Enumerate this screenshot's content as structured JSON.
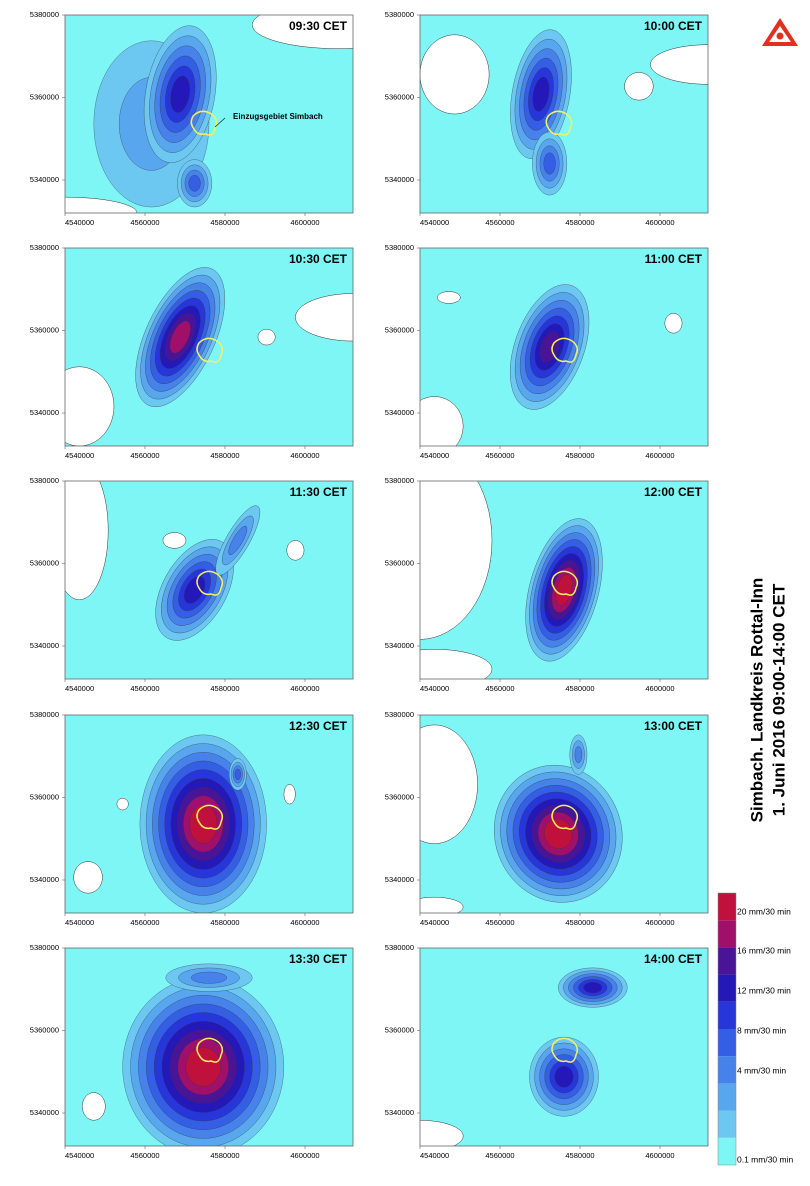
{
  "title_lines": [
    "Simbach. Landkreis Rottal-Inn",
    "1. Juni 2016 09:00-14:00 CET"
  ],
  "panels": [
    {
      "time": "09:30 CET"
    },
    {
      "time": "10:00 CET"
    },
    {
      "time": "10:30 CET"
    },
    {
      "time": "11:00 CET"
    },
    {
      "time": "11:30 CET"
    },
    {
      "time": "12:00 CET"
    },
    {
      "time": "12:30 CET"
    },
    {
      "time": "13:00 CET"
    },
    {
      "time": "13:30 CET"
    },
    {
      "time": "14:00 CET"
    }
  ],
  "annotation": "Einzugsgebiet Simbach",
  "xlim": [
    4540000,
    4612000
  ],
  "xticks": [
    4540000,
    4560000,
    4580000,
    4600000
  ],
  "ylim": [
    5332000,
    5380000
  ],
  "yticks": [
    5340000,
    5360000,
    5380000
  ],
  "legend": {
    "labels": [
      "20 mm/30 min",
      "16 mm/30 min",
      "12 mm/30 min",
      "8 mm/30 min",
      "4 mm/30 min",
      "0.1 mm/30 min"
    ],
    "colors": [
      "#7ff6f6",
      "#6cc8f0",
      "#58a6ee",
      "#4682ea",
      "#345ee4",
      "#2636d8",
      "#2418b8",
      "#4a1496",
      "#a0106a",
      "#c0103c"
    ]
  }
}
